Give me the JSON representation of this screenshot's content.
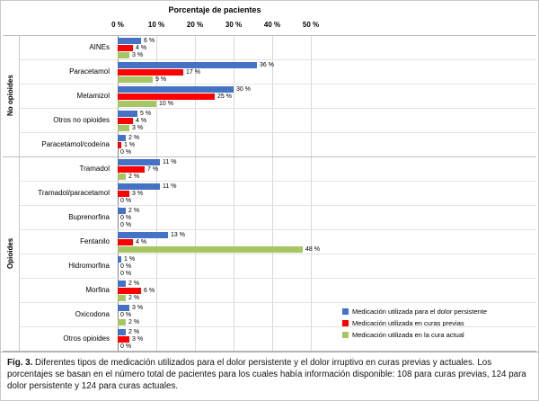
{
  "chart_data": {
    "type": "bar",
    "orientation": "horizontal",
    "title": "Porcentaje de pacientes",
    "x_ticks": [
      "0 %",
      "10 %",
      "20 %",
      "30 %",
      "40 %",
      "50 %"
    ],
    "xlim": [
      0,
      50
    ],
    "grid": true,
    "legend_position": "bottom-right",
    "value_suffix": " %",
    "groups": [
      {
        "label": "No opioides",
        "span": 5
      },
      {
        "label": "Opioides",
        "span": 8
      }
    ],
    "categories": [
      "AINEs",
      "Paracetamol",
      "Metamizol",
      "Otros no opioides",
      "Paracetamol/codeína",
      "Tramadol",
      "Tramadol/paracetamol",
      "Buprenorfina",
      "Fentanilo",
      "Hidromorfina",
      "Morfina",
      "Oxicodona",
      "Otros opioides"
    ],
    "series": [
      {
        "name": "Medicación utilizada para el dolor persistente",
        "color": "#4472C4",
        "values": [
          6,
          36,
          30,
          5,
          2,
          11,
          11,
          2,
          13,
          1,
          2,
          3,
          2
        ]
      },
      {
        "name": "Medicación utilizada en curas previas",
        "color": "#FF0000",
        "values": [
          4,
          17,
          25,
          4,
          1,
          7,
          3,
          0,
          4,
          0,
          6,
          0,
          3
        ]
      },
      {
        "name": "Medicación utilizada en la cura actual",
        "color": "#A5C663",
        "values": [
          3,
          9,
          10,
          3,
          0,
          2,
          0,
          0,
          48,
          0,
          2,
          2,
          0
        ]
      }
    ]
  },
  "caption": {
    "fig_label": "Fig. 3.",
    "text": "Diferentes tipos de medicación utilizados para el dolor persistente y el dolor irruptivo en curas previas y actuales. Los porcentajes se basan en el número total de pacientes para los cuales había información disponible: 108 para curas previas, 124 para dolor persistente y 124 para curas actuales."
  }
}
